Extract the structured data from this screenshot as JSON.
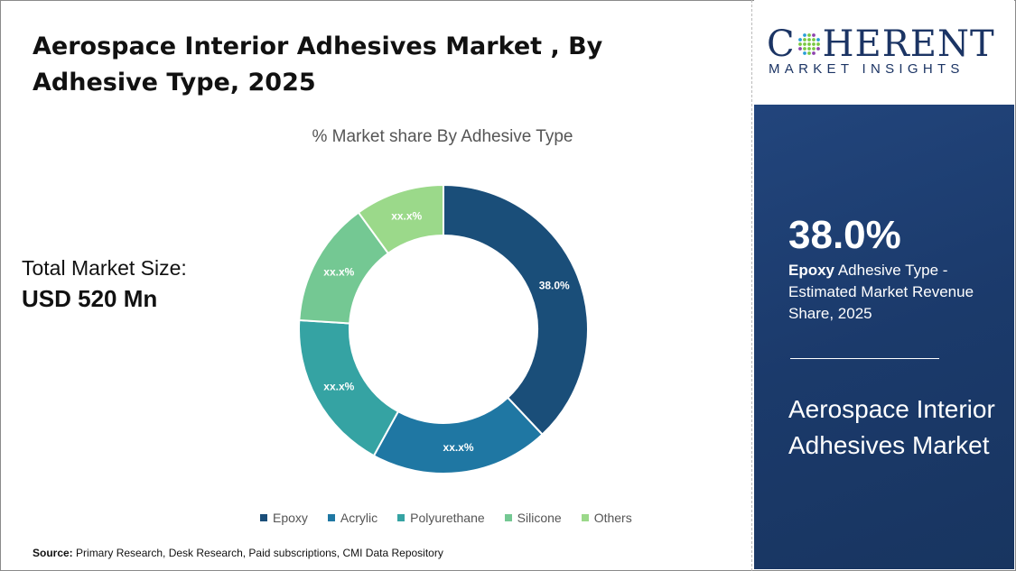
{
  "title": "Aerospace Interior Adhesives Market , By Adhesive Type, 2025",
  "total_market": {
    "label": "Total Market Size:",
    "value": "USD 520 Mn"
  },
  "source": {
    "label": "Source:",
    "text": " Primary Research, Desk Research, Paid subscriptions, CMI Data Repository"
  },
  "logo": {
    "main_before": "C",
    "main_after": "HERENT",
    "sub": "MARKET INSIGHTS"
  },
  "panel": {
    "highlight_value": "38.0%",
    "highlight_segment": "Epoxy",
    "highlight_desc": " Adhesive Type - Estimated Market Revenue Share, 2025",
    "market_name": "Aerospace Interior Adhesives Market"
  },
  "colors": {
    "panel_bg": "#1b3a6b",
    "logo_text": "#1b3464"
  },
  "chart_data": {
    "type": "pie",
    "donut": true,
    "title": "% Market share By Adhesive Type",
    "categories": [
      "Epoxy",
      "Acrylic",
      "Polyurethane",
      "Silicone",
      "Others"
    ],
    "values": [
      38.0,
      20.0,
      18.0,
      14.0,
      10.0
    ],
    "data_labels": [
      "38.0%",
      "xx.x%",
      "xx.x%",
      "xx.x%",
      "xx.x%"
    ],
    "colors": [
      "#1a4e79",
      "#1f77a3",
      "#35a3a3",
      "#74c893",
      "#9bd98a"
    ],
    "legend_position": "bottom"
  }
}
